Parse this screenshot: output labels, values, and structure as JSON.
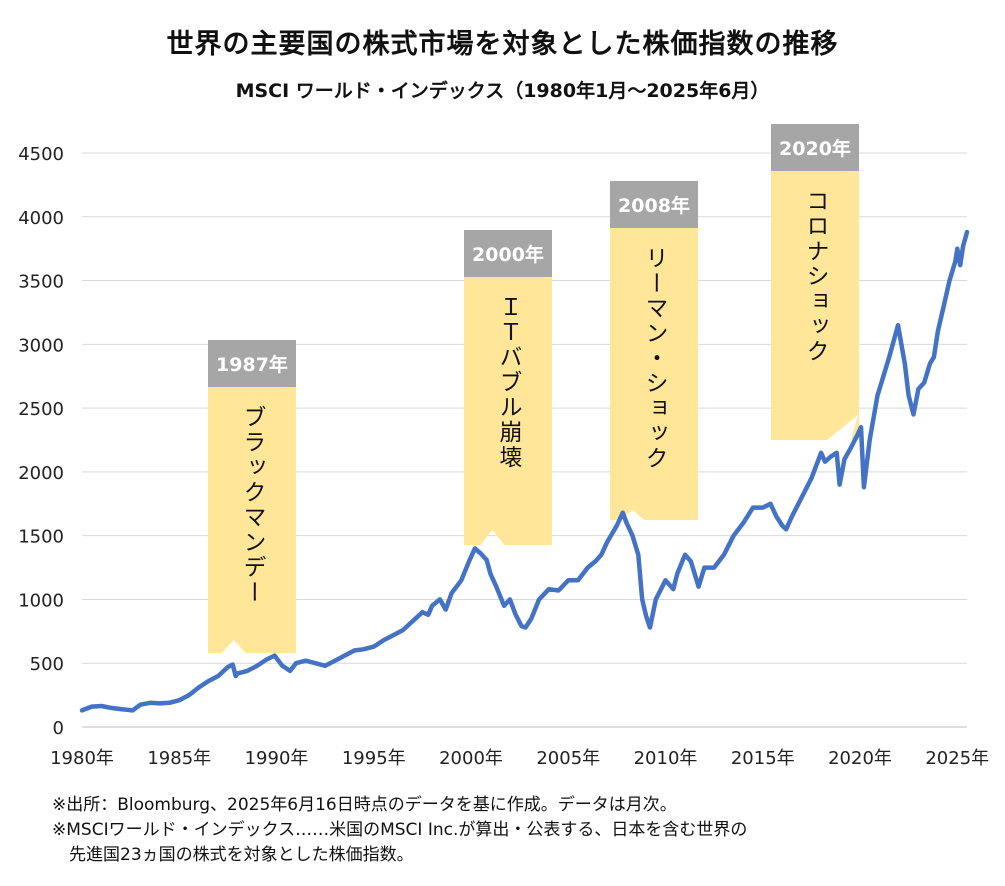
{
  "title": "世界の主要国の株式市場を対象とした株価指数の推移",
  "subtitle": "MSCI ワールド・インデックス（1980年1月～2025年6月）",
  "notes": [
    "※出所：Bloomburg、2025年6月16日時点のデータを基に作成。データは月次。",
    "※MSCIワールド・インデックス……米国のMSCI Inc.が算出・公表する、日本を含む世界の",
    "先進国23ヵ国の株式を対象とした株価指数。"
  ],
  "colors": {
    "line": "#4472c4",
    "callout_fill": "#ffe699",
    "callout_header": "#a6a6a6",
    "grid": "#d9d9d9"
  },
  "annotations": [
    {
      "year_label": "1987年",
      "event": "ブラックマンデー",
      "x": 1987.8
    },
    {
      "year_label": "2000年",
      "event": "ＩＴバブル崩壊",
      "x": 2001.1
    },
    {
      "year_label": "2008年",
      "event": "リーマン・ショック",
      "x": 2008.3
    },
    {
      "year_label": "2020年",
      "event": "コロナショック",
      "x": 2019.9
    }
  ],
  "chart_data": {
    "type": "line",
    "xlim": [
      1980,
      2025.5
    ],
    "ylim": [
      0,
      4500
    ],
    "x_ticks": [
      1980,
      1985,
      1990,
      1995,
      2000,
      2005,
      2010,
      2015,
      2020,
      2025
    ],
    "x_tick_labels": [
      "1980年",
      "1985年",
      "1990年",
      "1995年",
      "2000年",
      "2005年",
      "2010年",
      "2015年",
      "2020年",
      "2025年"
    ],
    "y_ticks": [
      0,
      500,
      1000,
      1500,
      2000,
      2500,
      3000,
      3500,
      4000,
      4500
    ],
    "y_tick_labels": [
      "0",
      "500",
      "1000",
      "1500",
      "2000",
      "2500",
      "3000",
      "3500",
      "4000",
      "4500"
    ],
    "grid": true,
    "series": [
      {
        "x": [
          1980.0,
          1980.5,
          1981.0,
          1981.5,
          1982.0,
          1982.6,
          1983.0,
          1983.5,
          1984.0,
          1984.5,
          1985.0,
          1985.5,
          1986.0,
          1986.5,
          1987.0,
          1987.5,
          1987.75,
          1987.9,
          1988.0,
          1988.5,
          1989.0,
          1989.5,
          1989.9,
          1990.3,
          1990.7,
          1991.0,
          1991.5,
          1992.0,
          1992.5,
          1993.0,
          1993.5,
          1994.0,
          1994.5,
          1995.0,
          1995.5,
          1996.0,
          1996.5,
          1997.0,
          1997.5,
          1997.8,
          1998.0,
          1998.4,
          1998.7,
          1999.0,
          1999.5,
          1999.9,
          2000.2,
          2000.5,
          2000.8,
          2001.0,
          2001.3,
          2001.7,
          2002.0,
          2002.3,
          2002.6,
          2002.8,
          2003.1,
          2003.5,
          2004.0,
          2004.5,
          2005.0,
          2005.5,
          2006.0,
          2006.4,
          2006.7,
          2007.0,
          2007.5,
          2007.8,
          2008.0,
          2008.3,
          2008.6,
          2008.8,
          2009.0,
          2009.2,
          2009.5,
          2010.0,
          2010.4,
          2010.6,
          2011.0,
          2011.3,
          2011.7,
          2012.0,
          2012.5,
          2013.0,
          2013.5,
          2014.0,
          2014.5,
          2015.0,
          2015.4,
          2015.7,
          2016.0,
          2016.2,
          2016.5,
          2017.0,
          2017.5,
          2018.0,
          2018.2,
          2018.5,
          2018.8,
          2018.95,
          2019.2,
          2019.5,
          2019.9,
          2020.05,
          2020.2,
          2020.5,
          2020.9,
          2021.0,
          2021.5,
          2021.95,
          2022.3,
          2022.5,
          2022.75,
          2023.0,
          2023.3,
          2023.6,
          2023.8,
          2024.0,
          2024.3,
          2024.6,
          2024.9,
          2025.0,
          2025.15,
          2025.3,
          2025.5
        ],
        "y": [
          130,
          160,
          165,
          150,
          140,
          130,
          175,
          190,
          185,
          190,
          210,
          250,
          310,
          360,
          400,
          470,
          490,
          400,
          420,
          440,
          480,
          530,
          560,
          480,
          440,
          500,
          520,
          500,
          480,
          520,
          560,
          600,
          610,
          630,
          680,
          720,
          760,
          830,
          900,
          880,
          950,
          1000,
          920,
          1050,
          1150,
          1300,
          1400,
          1360,
          1310,
          1200,
          1100,
          950,
          1000,
          880,
          790,
          780,
          850,
          1000,
          1080,
          1070,
          1150,
          1150,
          1250,
          1300,
          1350,
          1450,
          1580,
          1680,
          1600,
          1500,
          1350,
          1000,
          870,
          780,
          1000,
          1150,
          1080,
          1200,
          1350,
          1300,
          1100,
          1250,
          1250,
          1350,
          1500,
          1600,
          1720,
          1720,
          1750,
          1650,
          1580,
          1550,
          1650,
          1800,
          1950,
          2150,
          2080,
          2120,
          2150,
          1900,
          2100,
          2180,
          2300,
          2350,
          1880,
          2250,
          2600,
          2650,
          2900,
          3150,
          2850,
          2600,
          2450,
          2650,
          2700,
          2850,
          2900,
          3100,
          3300,
          3500,
          3650,
          3750,
          3620,
          3770,
          3880
        ]
      }
    ]
  }
}
